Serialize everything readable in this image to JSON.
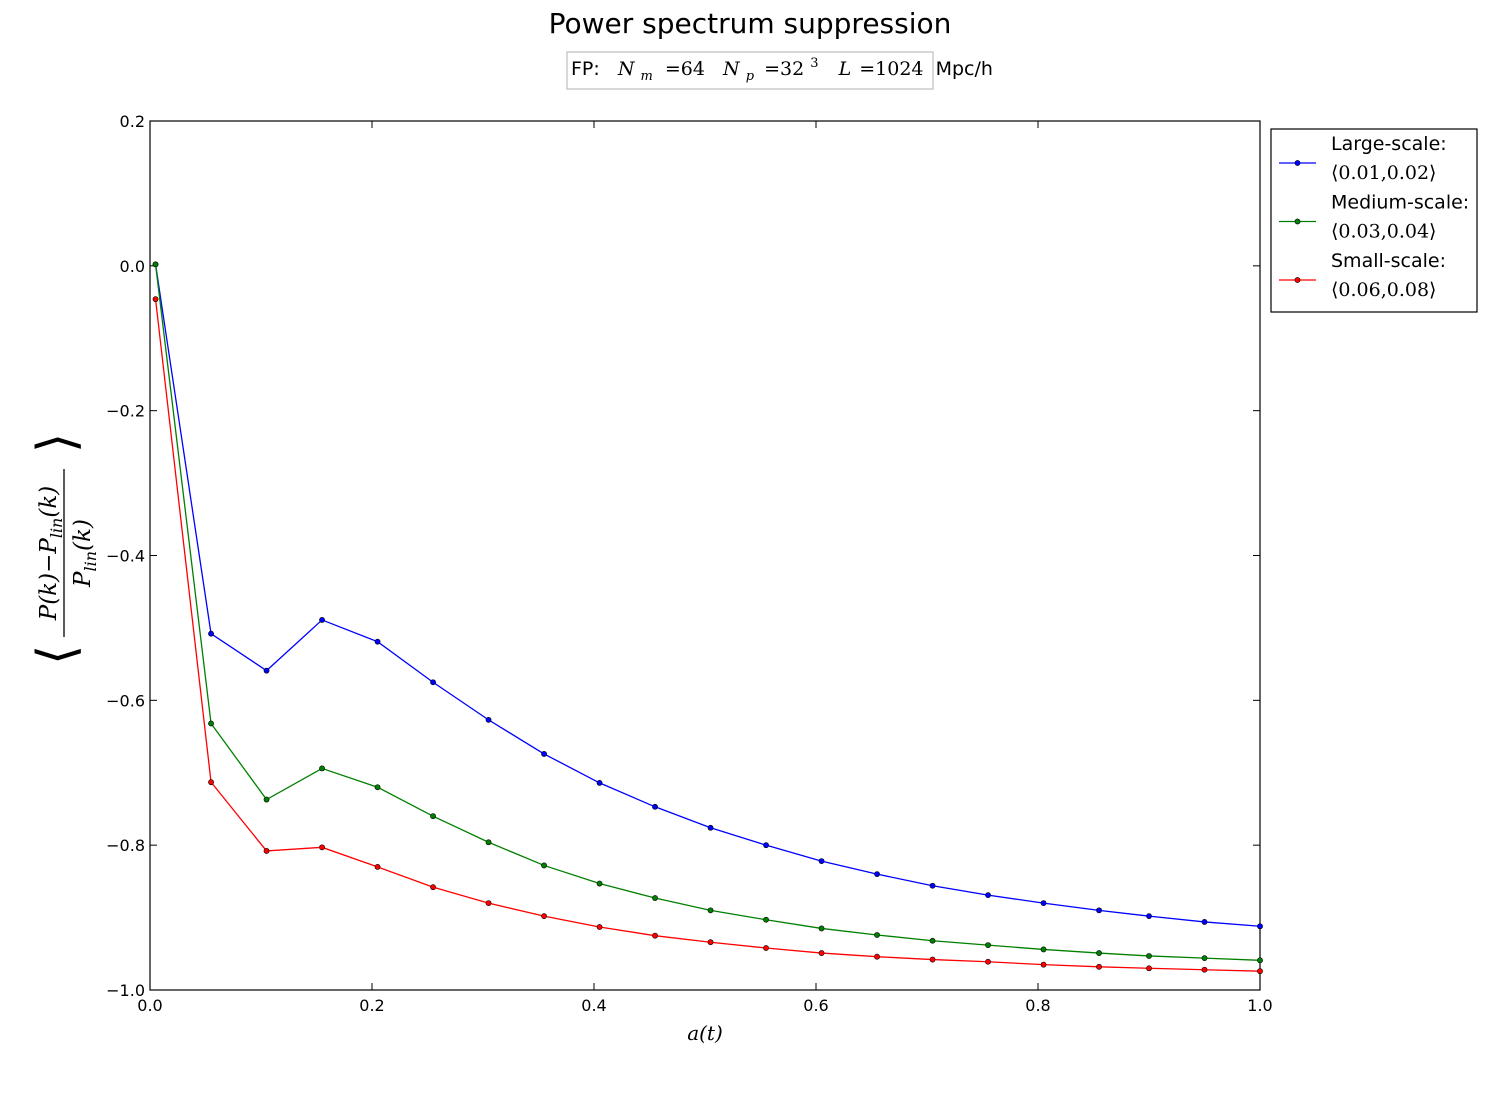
{
  "chart_data": {
    "type": "line",
    "title": "Power spectrum suppression",
    "subtitle": {
      "prefix": "FP:",
      "nm_symbol": "N",
      "nm_sub": "m",
      "nm_value": "=64",
      "np_symbol": "N",
      "np_sub": "p",
      "np_value": "=32",
      "np_exp": "3",
      "l_symbol": "L",
      "l_value": "=1024",
      "units": "Mpc/h"
    },
    "xlabel": "a(t)",
    "ylabel": "⟨(P(k) − P_lin(k)) / P_lin(k)⟩",
    "ylabel_parts": {
      "numerator": "P(k)−P",
      "numerator_sub": "lin",
      "numerator_tail": "(k)",
      "denominator": "P",
      "denominator_sub": "lin",
      "denominator_tail": "(k)"
    },
    "xlim": [
      0.0,
      1.0
    ],
    "ylim": [
      -1.0,
      0.2
    ],
    "xticks": [
      0.0,
      0.2,
      0.4,
      0.6,
      0.8,
      1.0
    ],
    "xtick_labels": [
      "0.0",
      "0.2",
      "0.4",
      "0.6",
      "0.8",
      "1.0"
    ],
    "yticks": [
      0.2,
      0.0,
      -0.2,
      -0.4,
      -0.6,
      -0.8,
      -1.0
    ],
    "ytick_labels": [
      "0.2",
      "0.0",
      "−0.2",
      "−0.4",
      "−0.6",
      "−0.8",
      "−1.0"
    ],
    "grid": false,
    "legend_position": "outside-right-top",
    "x": [
      0.005,
      0.055,
      0.105,
      0.155,
      0.205,
      0.255,
      0.305,
      0.355,
      0.405,
      0.455,
      0.505,
      0.555,
      0.605,
      0.655,
      0.705,
      0.755,
      0.805,
      0.855,
      0.9,
      0.95,
      1.0
    ],
    "series": [
      {
        "name": "Large-scale:",
        "name_math": "⟨0.01,0.02⟩",
        "color": "#0000ff",
        "values": [
          0.002,
          -0.508,
          -0.559,
          -0.489,
          -0.519,
          -0.575,
          -0.627,
          -0.674,
          -0.714,
          -0.747,
          -0.776,
          -0.8,
          -0.822,
          -0.84,
          -0.856,
          -0.869,
          -0.88,
          -0.89,
          -0.898,
          -0.906,
          -0.912
        ]
      },
      {
        "name": "Medium-scale:",
        "name_math": "⟨0.03,0.04⟩",
        "color": "#008000",
        "values": [
          0.002,
          -0.632,
          -0.737,
          -0.694,
          -0.72,
          -0.76,
          -0.796,
          -0.828,
          -0.853,
          -0.873,
          -0.89,
          -0.903,
          -0.915,
          -0.924,
          -0.932,
          -0.938,
          -0.944,
          -0.949,
          -0.953,
          -0.956,
          -0.959
        ]
      },
      {
        "name": "Small-scale:",
        "name_math": "⟨0.06,0.08⟩",
        "color": "#ff0000",
        "values": [
          -0.046,
          -0.713,
          -0.808,
          -0.803,
          -0.83,
          -0.858,
          -0.88,
          -0.898,
          -0.913,
          -0.925,
          -0.934,
          -0.942,
          -0.949,
          -0.954,
          -0.958,
          -0.961,
          -0.965,
          -0.968,
          -0.97,
          -0.972,
          -0.974
        ]
      }
    ]
  }
}
